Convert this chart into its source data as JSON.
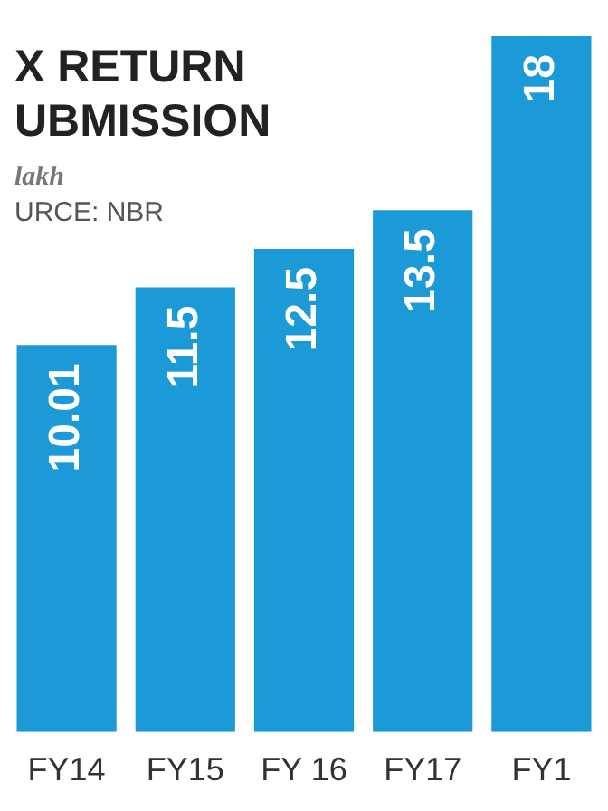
{
  "chart_data": {
    "type": "bar",
    "title": "X RETURN UBMISSION",
    "annotations": [
      "lakh",
      "URCE: NBR"
    ],
    "categories": [
      "FY14",
      "FY15",
      "FY 16",
      "FY17",
      "FY1"
    ],
    "values": [
      10.01,
      11.5,
      12.5,
      13.5,
      18
    ],
    "color": "#1b9ad7",
    "data_labels": true,
    "tick_labels": "x"
  }
}
